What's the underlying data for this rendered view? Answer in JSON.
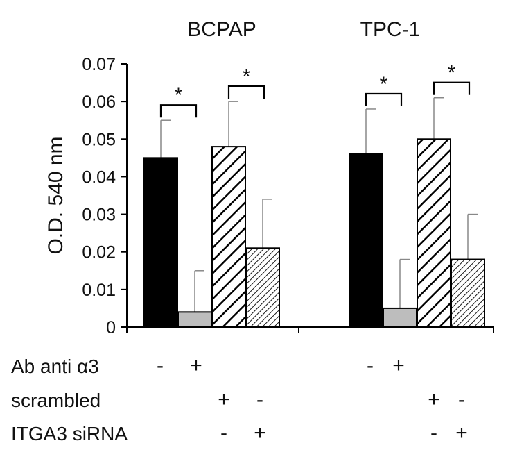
{
  "chart_data": {
    "type": "bar",
    "title": "",
    "xlabel": "",
    "ylabel": "O.D. 540 nm",
    "ylim": [
      0,
      0.07
    ],
    "yticks": [
      "0",
      "0.01",
      "0.02",
      "0.03",
      "0.04",
      "0.05",
      "0.06",
      "0.07"
    ],
    "grid": false,
    "groups": [
      "BCPAP",
      "TPC-1"
    ],
    "conditions": [
      {
        "name": "Ab anti α3 −",
        "fill": "solid-black"
      },
      {
        "name": "Ab anti α3 +",
        "fill": "solid-gray"
      },
      {
        "name": "scrambled +",
        "fill": "wide-hatch"
      },
      {
        "name": "ITGA3 siRNA +",
        "fill": "fine-hatch"
      }
    ],
    "series": [
      {
        "name": "BCPAP",
        "values": [
          0.045,
          0.004,
          0.048,
          0.021
        ],
        "errors": [
          0.01,
          0.011,
          0.012,
          0.013
        ]
      },
      {
        "name": "TPC-1",
        "values": [
          0.046,
          0.005,
          0.05,
          0.018
        ],
        "errors": [
          0.012,
          0.013,
          0.011,
          0.012
        ]
      }
    ],
    "significance": [
      "*",
      "*",
      "*",
      "*"
    ],
    "rows": [
      {
        "label": "Ab anti α3",
        "signs": [
          "-",
          "+",
          "",
          "",
          "-",
          "+",
          "",
          ""
        ]
      },
      {
        "label": "scrambled",
        "signs": [
          "",
          "",
          "+",
          "-",
          "",
          "",
          "+",
          "-"
        ]
      },
      {
        "label": "ITGA3 siRNA",
        "signs": [
          "",
          "",
          "-",
          "+",
          "",
          "",
          "-",
          "+"
        ]
      }
    ]
  },
  "colors": {
    "black_bar": "#000000",
    "gray_bar": "#bdbdbd",
    "hatch_stroke": "#000000",
    "error_bar": "#888888",
    "axis": "#000000"
  }
}
